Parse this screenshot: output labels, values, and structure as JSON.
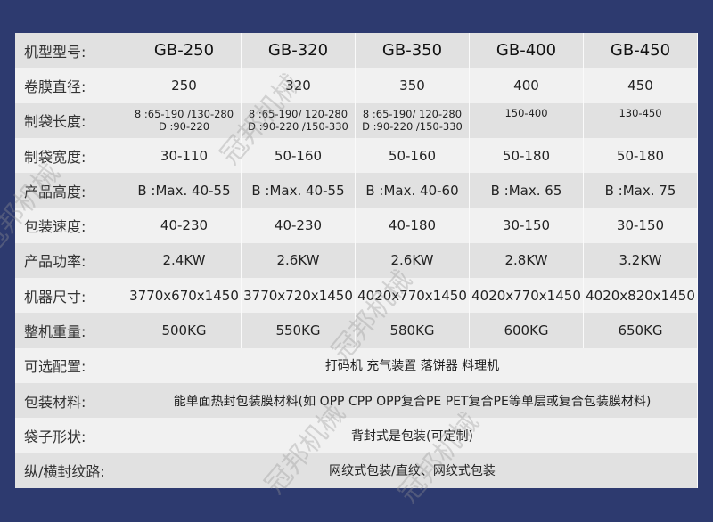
{
  "table": {
    "models": [
      "GB-250",
      "GB-320",
      "GB-350",
      "GB-400",
      "GB-450"
    ],
    "header_label": "机型型号:",
    "rows": [
      {
        "label": "卷膜直径:",
        "values": [
          "250",
          "320",
          "350",
          "400",
          "450"
        ]
      },
      {
        "label": "制袋长度:",
        "values": [
          [
            "8 :65-190 /130-280",
            "D :90-220"
          ],
          [
            "8 :65-190/ 120-280",
            "D :90-220 /150-330"
          ],
          [
            "8 :65-190/ 120-280",
            "D :90-220 /150-330"
          ],
          [
            "150-400",
            ""
          ],
          [
            "130-450",
            ""
          ]
        ]
      },
      {
        "label": "制袋宽度:",
        "values": [
          "30-110",
          "50-160",
          "50-160",
          "50-180",
          "50-180"
        ]
      },
      {
        "label": "产品高度:",
        "values": [
          "B :Max. 40-55",
          "B :Max. 40-55",
          "B :Max. 40-60",
          "B :Max. 65",
          "B :Max. 75"
        ]
      },
      {
        "label": "包装速度:",
        "values": [
          "40-230",
          "40-230",
          "40-180",
          "30-150",
          "30-150"
        ]
      },
      {
        "label": "产品功率:",
        "values": [
          "2.4KW",
          "2.6KW",
          "2.6KW",
          "2.8KW",
          "3.2KW"
        ]
      },
      {
        "label": "机器尺寸:",
        "values": [
          "3770x670x1450",
          "3770x720x1450",
          "4020x770x1450",
          "4020x770x1450",
          "4020x820x1450"
        ]
      },
      {
        "label": "整机重量:",
        "values": [
          "500KG",
          "550KG",
          "580KG",
          "600KG",
          "650KG"
        ]
      }
    ],
    "span_rows": [
      {
        "label": "可选配置:",
        "value": "打码机 充气装置 落饼器 料理机"
      },
      {
        "label": "包装材料:",
        "value": "能单面热封包装膜材料(如 OPP CPP OPP复合PE PET复合PE等单层或复合包装膜材料)"
      },
      {
        "label": "袋子形状:",
        "value": "背封式是包装(可定制)"
      },
      {
        "label": "纵/横封纹路:",
        "value": "网纹式包装/直纹、网纹式包装"
      }
    ]
  },
  "watermark": "冠邦机械",
  "colors": {
    "background": "#2d3a6f",
    "row_dark": "#e1e1e1",
    "row_light": "#f1f1f1"
  }
}
